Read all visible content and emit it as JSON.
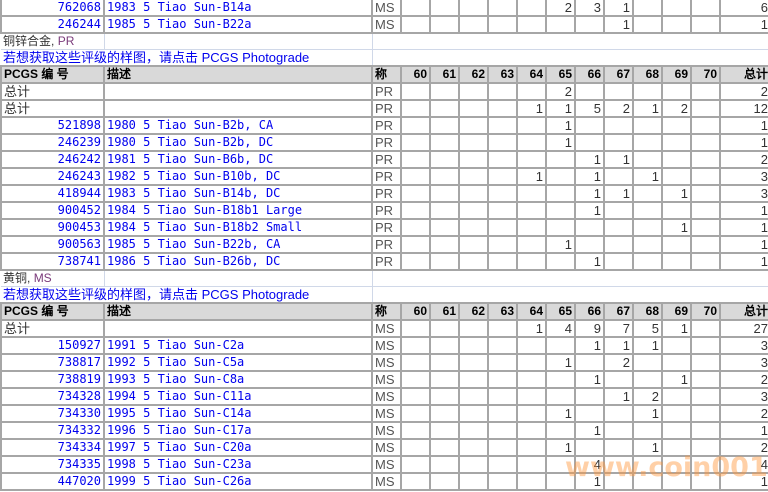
{
  "grade_columns": [
    "60",
    "61",
    "62",
    "63",
    "64",
    "65",
    "66",
    "67",
    "68",
    "69",
    "70"
  ],
  "header": {
    "pcgs_no": "PCGS 编 号",
    "desc": "描述",
    "designation": "称",
    "total": "总计"
  },
  "total_label": "总计",
  "top_rows": [
    {
      "id": "762068",
      "desc": "1983 5 Tiao Sun-B14a",
      "type": "MS",
      "counts": [
        "",
        "",
        "",
        "",
        "",
        "2",
        "3",
        "1",
        "",
        "",
        ""
      ],
      "total": "6"
    },
    {
      "id": "246244",
      "desc": "1985 5 Tiao Sun-B22a",
      "type": "MS",
      "counts": [
        "",
        "",
        "",
        "",
        "",
        "",
        "",
        "1",
        "",
        "",
        ""
      ],
      "total": "1"
    }
  ],
  "sections": [
    {
      "group_metal": "铜锌合金",
      "group_sep": ", ",
      "group_type": "PR",
      "photograde_link": "若想获取这些评级的样图，请点击 PCGS Photograde",
      "totals": [
        {
          "type": "PR",
          "counts": [
            "",
            "",
            "",
            "",
            "",
            "2",
            "",
            "",
            "",
            "",
            ""
          ],
          "total": "2"
        },
        {
          "type": "PR",
          "counts": [
            "",
            "",
            "",
            "",
            "1",
            "1",
            "5",
            "2",
            "1",
            "2",
            ""
          ],
          "total": "12"
        }
      ],
      "rows": [
        {
          "id": "521898",
          "desc": "1980 5 Tiao Sun-B2b, CA",
          "type": "PR",
          "counts": [
            "",
            "",
            "",
            "",
            "",
            "1",
            "",
            "",
            "",
            "",
            ""
          ],
          "total": "1"
        },
        {
          "id": "246239",
          "desc": "1980 5 Tiao Sun-B2b, DC",
          "type": "PR",
          "counts": [
            "",
            "",
            "",
            "",
            "",
            "1",
            "",
            "",
            "",
            "",
            ""
          ],
          "total": "1"
        },
        {
          "id": "246242",
          "desc": "1981 5 Tiao Sun-B6b, DC",
          "type": "PR",
          "counts": [
            "",
            "",
            "",
            "",
            "",
            "",
            "1",
            "1",
            "",
            "",
            ""
          ],
          "total": "2"
        },
        {
          "id": "246243",
          "desc": "1982 5 Tiao Sun-B10b, DC",
          "type": "PR",
          "counts": [
            "",
            "",
            "",
            "",
            "1",
            "",
            "1",
            "",
            "1",
            "",
            ""
          ],
          "total": "3"
        },
        {
          "id": "418944",
          "desc": "1983 5 Tiao Sun-B14b, DC",
          "type": "PR",
          "counts": [
            "",
            "",
            "",
            "",
            "",
            "",
            "1",
            "1",
            "",
            "1",
            ""
          ],
          "total": "3"
        },
        {
          "id": "900452",
          "desc": "1984 5 Tiao Sun-B18b1 Large",
          "type": "PR",
          "counts": [
            "",
            "",
            "",
            "",
            "",
            "",
            "1",
            "",
            "",
            "",
            ""
          ],
          "total": "1"
        },
        {
          "id": "900453",
          "desc": "1984 5 Tiao Sun-B18b2 Small",
          "type": "PR",
          "counts": [
            "",
            "",
            "",
            "",
            "",
            "",
            "",
            "",
            "",
            "1",
            ""
          ],
          "total": "1"
        },
        {
          "id": "900563",
          "desc": "1985 5 Tiao Sun-B22b, CA",
          "type": "PR",
          "counts": [
            "",
            "",
            "",
            "",
            "",
            "1",
            "",
            "",
            "",
            "",
            ""
          ],
          "total": "1"
        },
        {
          "id": "738741",
          "desc": "1986 5 Tiao Sun-B26b, DC",
          "type": "PR",
          "counts": [
            "",
            "",
            "",
            "",
            "",
            "",
            "1",
            "",
            "",
            "",
            ""
          ],
          "total": "1"
        }
      ]
    },
    {
      "group_metal": "黄铜",
      "group_sep": ", ",
      "group_type": "MS",
      "photograde_link": "若想获取这些评级的样图，请点击 PCGS Photograde",
      "totals": [
        {
          "type": "MS",
          "counts": [
            "",
            "",
            "",
            "",
            "1",
            "4",
            "9",
            "7",
            "5",
            "1",
            ""
          ],
          "total": "27"
        }
      ],
      "rows": [
        {
          "id": "150927",
          "desc": "1991 5 Tiao Sun-C2a",
          "type": "MS",
          "counts": [
            "",
            "",
            "",
            "",
            "",
            "",
            "1",
            "1",
            "1",
            "",
            ""
          ],
          "total": "3"
        },
        {
          "id": "738817",
          "desc": "1992 5 Tiao Sun-C5a",
          "type": "MS",
          "counts": [
            "",
            "",
            "",
            "",
            "",
            "1",
            "",
            "2",
            "",
            "",
            ""
          ],
          "total": "3"
        },
        {
          "id": "738819",
          "desc": "1993 5 Tiao Sun-C8a",
          "type": "MS",
          "counts": [
            "",
            "",
            "",
            "",
            "",
            "",
            "1",
            "",
            "",
            "1",
            ""
          ],
          "total": "2"
        },
        {
          "id": "734328",
          "desc": "1994 5 Tiao Sun-C11a",
          "type": "MS",
          "counts": [
            "",
            "",
            "",
            "",
            "",
            "",
            "",
            "1",
            "2",
            "",
            ""
          ],
          "total": "3"
        },
        {
          "id": "734330",
          "desc": "1995 5 Tiao Sun-C14a",
          "type": "MS",
          "counts": [
            "",
            "",
            "",
            "",
            "",
            "1",
            "",
            "",
            "1",
            "",
            ""
          ],
          "total": "2"
        },
        {
          "id": "734332",
          "desc": "1996 5 Tiao Sun-C17a",
          "type": "MS",
          "counts": [
            "",
            "",
            "",
            "",
            "",
            "",
            "1",
            "",
            "",
            "",
            ""
          ],
          "total": "1"
        },
        {
          "id": "734334",
          "desc": "1997 5 Tiao Sun-C20a",
          "type": "MS",
          "counts": [
            "",
            "",
            "",
            "",
            "",
            "1",
            "",
            "",
            "1",
            "",
            ""
          ],
          "total": "2"
        },
        {
          "id": "734335",
          "desc": "1998 5 Tiao Sun-C23a",
          "type": "MS",
          "counts": [
            "",
            "",
            "",
            "",
            "",
            "",
            "4",
            "",
            "",
            "",
            ""
          ],
          "total": "4"
        },
        {
          "id": "447020",
          "desc": "1999 5 Tiao Sun-C26a",
          "type": "MS",
          "counts": [
            "",
            "",
            "",
            "",
            "",
            "",
            "1",
            "",
            "",
            "",
            ""
          ],
          "total": "1"
        }
      ]
    }
  ],
  "watermark": "www.coin001.com",
  "colors": {
    "link": "#0000ee",
    "header_bg": "#d9d9d9",
    "grid": "#a6a6a6",
    "watermark": "#ff9640"
  }
}
